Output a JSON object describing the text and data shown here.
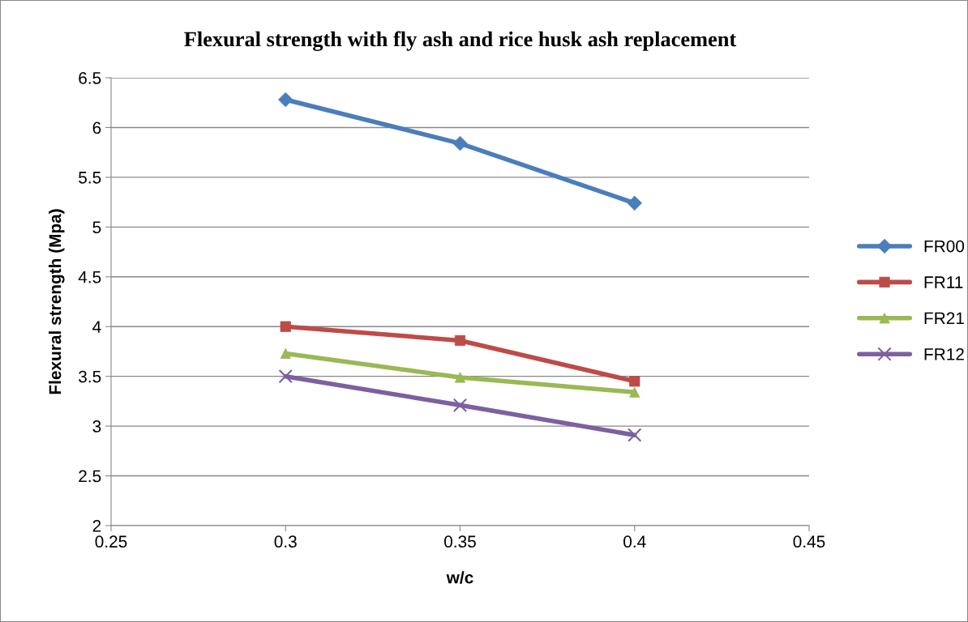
{
  "chart_data": {
    "type": "line",
    "title": "Flexural strength with fly ash and rice husk ash replacement",
    "xlabel": "w/c",
    "ylabel": "Flexural strength (Mpa)",
    "x": [
      0.3,
      0.35,
      0.4
    ],
    "series": [
      {
        "name": "FR00",
        "color": "#4a7ebb",
        "marker": "diamond",
        "values": [
          6.28,
          5.84,
          5.24
        ]
      },
      {
        "name": "FR11",
        "color": "#be4b48",
        "marker": "square",
        "values": [
          4.0,
          3.86,
          3.45
        ]
      },
      {
        "name": "FR21",
        "color": "#98b954",
        "marker": "triangle",
        "values": [
          3.73,
          3.49,
          3.34
        ]
      },
      {
        "name": "FR12",
        "color": "#7d60a0",
        "marker": "cross",
        "values": [
          3.5,
          3.21,
          2.91
        ]
      }
    ],
    "xlim": [
      0.25,
      0.45
    ],
    "xticks": [
      0.25,
      0.3,
      0.35,
      0.4,
      0.45
    ],
    "ylim": [
      2,
      6.5
    ],
    "yticks": [
      2,
      2.5,
      3,
      3.5,
      4,
      4.5,
      5,
      5.5,
      6,
      6.5
    ],
    "grid": "y",
    "legend": "right",
    "line_style": "solid"
  }
}
